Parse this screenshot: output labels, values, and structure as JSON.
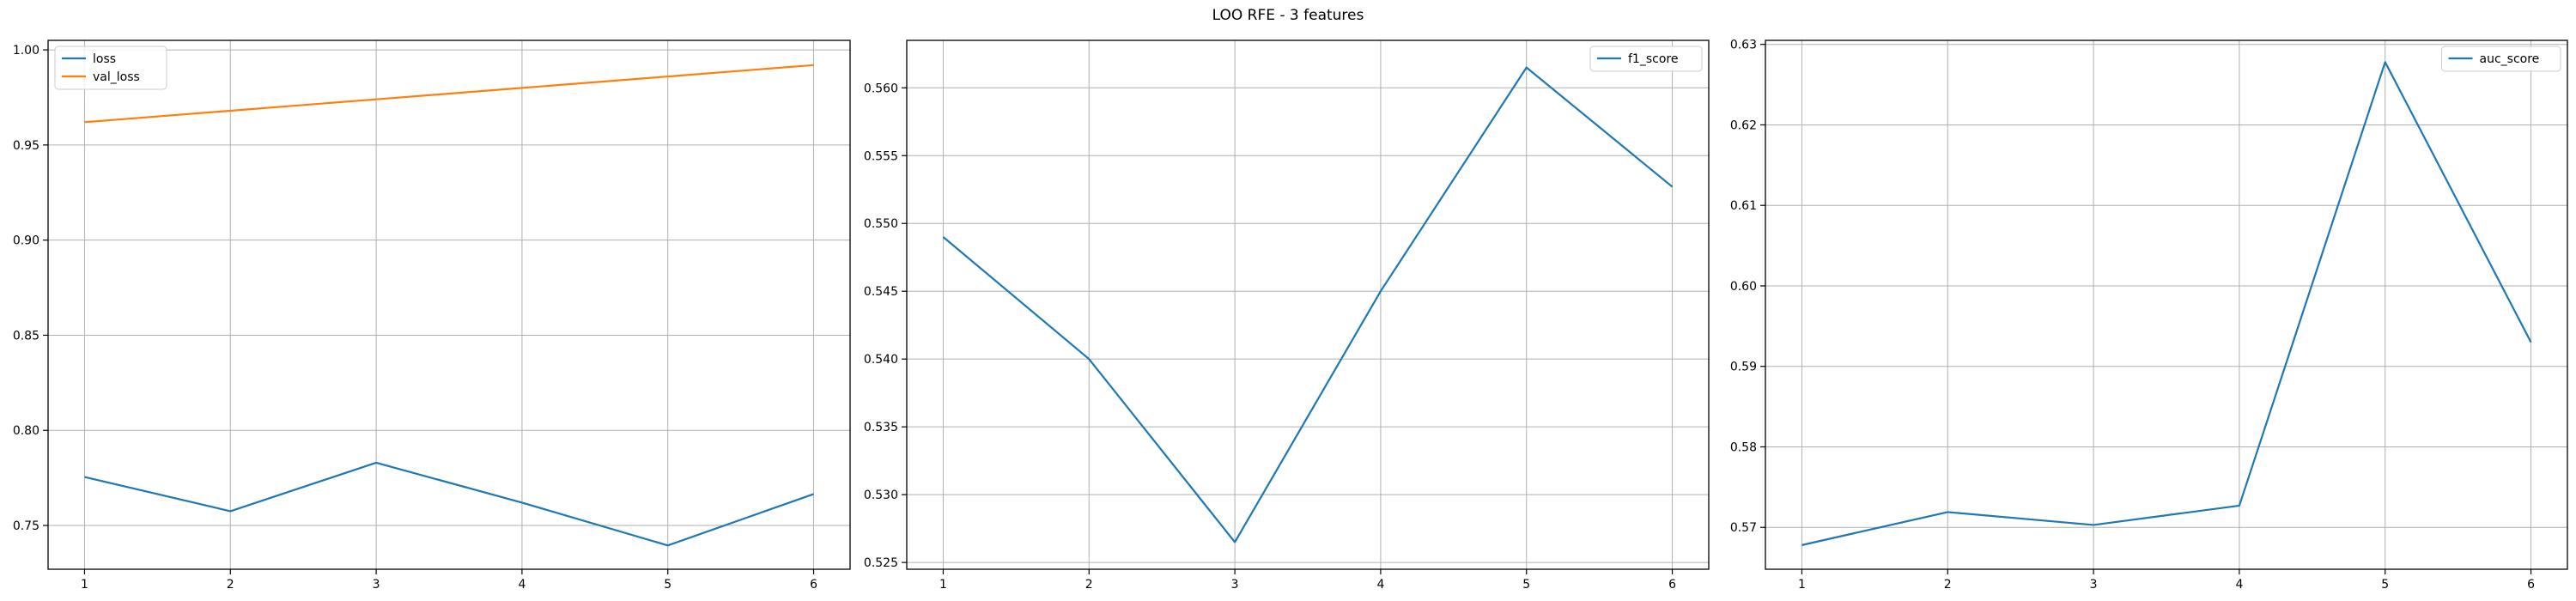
{
  "figure": {
    "title": "LOO RFE - 3 features"
  },
  "chart_data": [
    {
      "type": "line",
      "x": [
        1,
        2,
        3,
        4,
        5,
        6
      ],
      "xticks": [
        1,
        2,
        3,
        4,
        5,
        6
      ],
      "xlim": [
        0.75,
        6.25
      ],
      "ylim": [
        0.727,
        1.005
      ],
      "yticks": [
        0.75,
        0.8,
        0.85,
        0.9,
        0.95,
        1.0
      ],
      "ytick_format": 2,
      "grid": true,
      "legend": "top-left",
      "series": [
        {
          "name": "loss",
          "color": "#1f77b4",
          "values": [
            0.7755,
            0.7575,
            0.783,
            0.762,
            0.7395,
            0.7665
          ]
        },
        {
          "name": "val_loss",
          "color": "#ff7f0e",
          "values": [
            0.962,
            0.968,
            0.974,
            0.98,
            0.986,
            0.992
          ]
        }
      ]
    },
    {
      "type": "line",
      "x": [
        1,
        2,
        3,
        4,
        5,
        6
      ],
      "xticks": [
        1,
        2,
        3,
        4,
        5,
        6
      ],
      "xlim": [
        0.75,
        6.25
      ],
      "ylim": [
        0.5245,
        0.5635
      ],
      "yticks": [
        0.525,
        0.53,
        0.535,
        0.54,
        0.545,
        0.55,
        0.555,
        0.56
      ],
      "ytick_format": 3,
      "grid": true,
      "legend": "top-right",
      "series": [
        {
          "name": "f1_score",
          "color": "#1f77b4",
          "values": [
            0.549,
            0.54,
            0.5265,
            0.545,
            0.5615,
            0.5527
          ]
        }
      ]
    },
    {
      "type": "line",
      "x": [
        1,
        2,
        3,
        4,
        5,
        6
      ],
      "xticks": [
        1,
        2,
        3,
        4,
        5,
        6
      ],
      "xlim": [
        0.75,
        6.25
      ],
      "ylim": [
        0.5648,
        0.6305
      ],
      "yticks": [
        0.57,
        0.58,
        0.59,
        0.6,
        0.61,
        0.62,
        0.63
      ],
      "ytick_format": 2,
      "grid": true,
      "legend": "top-right",
      "series": [
        {
          "name": "auc_score",
          "color": "#1f77b4",
          "values": [
            0.5678,
            0.5719,
            0.5703,
            0.5727,
            0.6278,
            0.593
          ]
        }
      ]
    }
  ]
}
